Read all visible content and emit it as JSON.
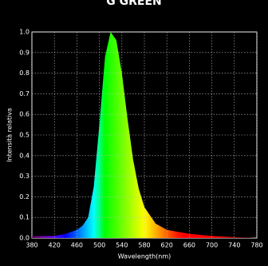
{
  "chart_data": {
    "type": "line",
    "title": "G GREEN",
    "xlabel": "Wavelength(nm)",
    "ylabel": "Intensità relativa",
    "x": [
      380,
      400,
      420,
      440,
      460,
      470,
      480,
      490,
      500,
      510,
      520,
      530,
      540,
      550,
      560,
      570,
      580,
      600,
      620,
      640,
      660,
      700,
      740,
      780
    ],
    "series": [
      {
        "values": [
          0.01,
          0.01,
          0.01,
          0.02,
          0.04,
          0.06,
          0.1,
          0.25,
          0.55,
          0.88,
          1.0,
          0.96,
          0.8,
          0.58,
          0.38,
          0.24,
          0.15,
          0.07,
          0.04,
          0.03,
          0.02,
          0.01,
          0.005,
          0
        ]
      }
    ],
    "xlim": [
      380,
      780
    ],
    "xticks": [
      380,
      420,
      460,
      500,
      540,
      580,
      620,
      660,
      700,
      740,
      780
    ],
    "ylim": [
      0,
      1
    ],
    "yticks": [
      {
        "value": 0,
        "label": "0.0"
      },
      0.1,
      0.2,
      0.3,
      0.4,
      0.5,
      0.6,
      0.7,
      0.8,
      0.9,
      {
        "value": 1,
        "label": "1.0"
      }
    ],
    "grid": true
  }
}
